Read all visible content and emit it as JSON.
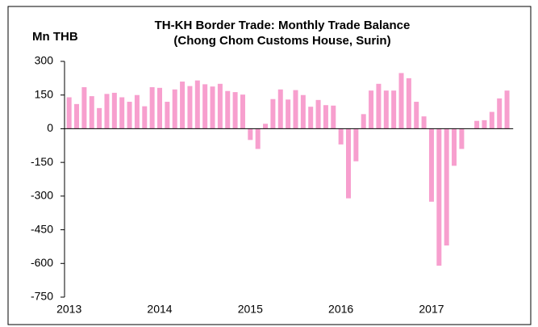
{
  "chart_data": {
    "type": "bar",
    "title": "TH-KH Border Trade: Monthly Trade Balance",
    "subtitle": "(Chong Chom Customs House, Surin)",
    "y_label": "Mn THB",
    "color": "#f79fce",
    "categories": [
      "2013",
      null,
      null,
      null,
      null,
      null,
      null,
      null,
      null,
      null,
      null,
      null,
      "2014",
      null,
      null,
      null,
      null,
      null,
      null,
      null,
      null,
      null,
      null,
      null,
      "2015",
      null,
      null,
      null,
      null,
      null,
      null,
      null,
      null,
      null,
      null,
      null,
      "2016",
      null,
      null,
      null,
      null,
      null,
      null,
      null,
      null,
      null,
      null,
      null,
      "2017",
      null,
      null,
      null,
      null,
      null,
      null,
      null,
      null,
      null,
      null
    ],
    "values": [
      140,
      110,
      185,
      145,
      92,
      155,
      160,
      140,
      120,
      150,
      100,
      185,
      182,
      120,
      175,
      210,
      190,
      215,
      198,
      188,
      200,
      168,
      163,
      152,
      -50,
      -90,
      22,
      132,
      175,
      130,
      172,
      150,
      98,
      128,
      105,
      103,
      -70,
      -310,
      -145,
      65,
      170,
      200,
      170,
      170,
      248,
      225,
      120,
      55,
      -325,
      -610,
      -520,
      -165,
      -90,
      null,
      35,
      38,
      75,
      135,
      170
    ],
    "ylim": [
      -750,
      300
    ],
    "yticks": [
      -750,
      -600,
      -450,
      -300,
      -150,
      0,
      150,
      300
    ],
    "grid": false
  }
}
